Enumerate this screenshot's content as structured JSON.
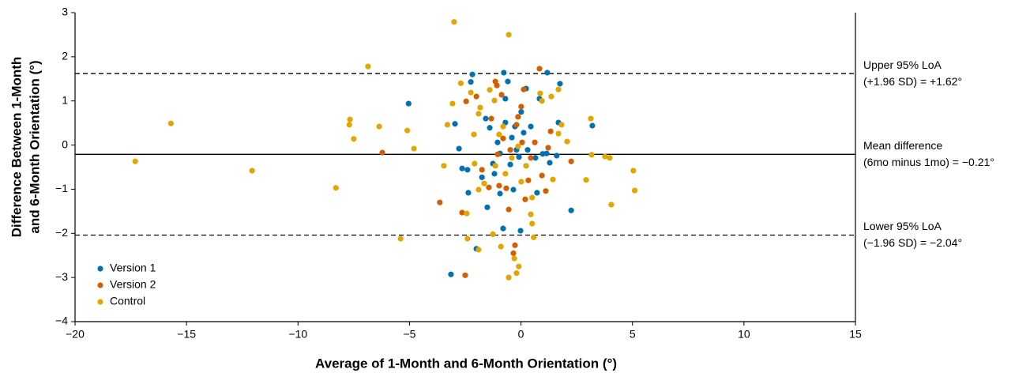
{
  "chart_data": {
    "type": "scatter",
    "xlabel": "Average of 1-Month and 6-Month Orientation (°)",
    "ylabel": [
      "Difference Between 1-Month",
      "and 6-Month Orientation (°)"
    ],
    "xlim": [
      -20,
      15
    ],
    "ylim": [
      -4,
      3
    ],
    "xticks": [
      {
        "value": -20,
        "label": "−20"
      },
      {
        "value": -15,
        "label": "−15"
      },
      {
        "value": -10,
        "label": "−10"
      },
      {
        "value": -5,
        "label": "−5"
      },
      0,
      5,
      10,
      15
    ],
    "yticks": [
      {
        "value": -4,
        "label": "−4"
      },
      {
        "value": -3,
        "label": "−3"
      },
      {
        "value": -2,
        "label": "−2"
      },
      {
        "value": -1,
        "label": "−1"
      },
      0,
      1,
      2,
      3
    ],
    "grid": false,
    "legend": "lower left",
    "hlines": [
      {
        "value": 1.62,
        "style": "dashed",
        "label": [
          "Upper 95% LoA",
          "(+1.96 SD) = +1.62°"
        ]
      },
      {
        "value": -0.21,
        "style": "solid",
        "label": [
          "Mean difference",
          "(6mo minus 1mo) = −0.21°"
        ]
      },
      {
        "value": -2.04,
        "style": "dashed",
        "label": [
          "Lower 95% LoA",
          "(−1.96 SD) = −2.04°"
        ]
      }
    ],
    "series": [
      {
        "name": "Version 1",
        "color": "#0072b2",
        "x": [
          -5.04,
          -3.14,
          -2.96,
          -2.78,
          -2.64,
          -2.4,
          -2.25,
          -2.18,
          -2.36,
          -2.0,
          -1.75,
          -1.51,
          -1.4,
          -1.26,
          -1.05,
          -0.94,
          -0.8,
          -0.77,
          -0.7,
          -0.59,
          -0.48,
          -0.41,
          -0.34,
          -0.27,
          -0.2,
          -0.09,
          -0.02,
          0.01,
          0.12,
          0.23,
          0.3,
          0.44,
          0.65,
          0.72,
          0.83,
          0.97,
          1.15,
          1.29,
          1.18,
          1.75,
          1.68,
          3.2,
          2.25,
          1.6,
          -1.58,
          -1.19,
          -0.7,
          -0.94
        ],
        "y": [
          0.94,
          -2.93,
          0.48,
          -0.08,
          -0.53,
          -0.56,
          1.43,
          1.6,
          -1.08,
          -2.35,
          -0.73,
          -1.41,
          0.39,
          -0.42,
          0.06,
          -0.19,
          -1.89,
          1.64,
          0.51,
          1.44,
          -0.44,
          0.17,
          -1.01,
          0.42,
          -0.11,
          -0.27,
          -1.94,
          0.75,
          0.28,
          1.28,
          -0.11,
          0.42,
          -0.29,
          -1.08,
          1.05,
          -0.2,
          -0.19,
          -0.4,
          1.64,
          1.39,
          0.51,
          0.44,
          -1.48,
          -0.24,
          0.6,
          -0.65,
          1.05,
          -1.1
        ]
      },
      {
        "name": "Version 2",
        "color": "#d55e00",
        "x": [
          -6.22,
          -3.64,
          -2.64,
          -2.5,
          -2.46,
          -2.0,
          -1.44,
          -1.33,
          -1.15,
          -1.08,
          -0.87,
          -0.8,
          -0.66,
          -0.48,
          -0.34,
          -0.27,
          -0.2,
          -0.13,
          0.01,
          0.12,
          0.19,
          0.33,
          0.44,
          0.83,
          0.94,
          1.11,
          1.22,
          1.33,
          2.25,
          0.05,
          -0.55,
          -1.05,
          -1.75,
          0.62,
          -0.98
        ],
        "y": [
          -0.17,
          -1.3,
          -1.53,
          -2.95,
          0.99,
          1.1,
          -0.96,
          0.6,
          1.44,
          1.35,
          1.14,
          0.15,
          -0.98,
          -0.11,
          -2.45,
          -2.27,
          0.46,
          0.64,
          0.87,
          1.26,
          -1.23,
          -0.8,
          -0.29,
          1.73,
          -0.69,
          -1.04,
          -0.06,
          0.31,
          -0.37,
          0.06,
          -1.46,
          -0.21,
          -0.56,
          0.06,
          -0.92
        ]
      },
      {
        "name": "Control",
        "color": "#e3a500",
        "x": [
          -3.0,
          -0.55,
          -6.86,
          -15.7,
          -17.3,
          -12.06,
          -8.3,
          -7.7,
          -7.67,
          -7.5,
          -6.36,
          -5.1,
          -4.8,
          -5.4,
          -3.46,
          -3.3,
          -3.07,
          -2.7,
          -2.43,
          -2.4,
          -1.26,
          -1.9,
          -0.9,
          -0.55,
          -0.2,
          -0.1,
          -0.3,
          0.44,
          0.5,
          0.57,
          2.92,
          3.13,
          3.77,
          3.98,
          4.05,
          5.04,
          5.1,
          3.17,
          2.07,
          1.68,
          1.82,
          1.36,
          1.68,
          0.94,
          0.86,
          1.43,
          -1.9,
          -1.65,
          -2.08,
          -1.83,
          -1.9,
          -1.4,
          -1.19,
          -0.8,
          -0.41,
          -0.13,
          0.01,
          0.23,
          0.5,
          -2.11,
          -2.25,
          -0.98,
          -0.7,
          -1.15
        ],
        "y": [
          2.79,
          2.5,
          1.78,
          0.49,
          -0.37,
          -0.58,
          -0.97,
          0.46,
          0.58,
          0.14,
          0.42,
          0.33,
          -0.08,
          -2.12,
          -0.47,
          0.46,
          0.94,
          1.4,
          -1.55,
          -2.12,
          -2.02,
          -2.37,
          -2.3,
          -3.0,
          -2.9,
          -2.75,
          -2.57,
          -1.57,
          -1.78,
          -2.09,
          -0.79,
          0.6,
          -0.26,
          -0.29,
          -1.35,
          -0.58,
          -1.03,
          -0.22,
          0.08,
          0.26,
          0.46,
          1.1,
          1.26,
          1.0,
          1.17,
          -0.78,
          -1.01,
          -0.87,
          -0.42,
          0.85,
          0.71,
          1.25,
          1.01,
          0.42,
          -0.29,
          -0.03,
          -0.83,
          -0.47,
          -1.19,
          0.24,
          1.19,
          0.24,
          -0.65,
          -0.47
        ]
      }
    ]
  }
}
